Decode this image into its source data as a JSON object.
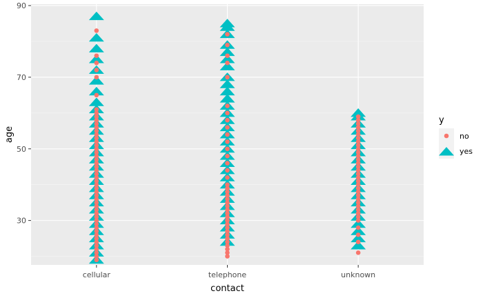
{
  "chart_data": {
    "type": "scatter",
    "xlabel": "contact",
    "ylabel": "age",
    "categories": [
      "cellular",
      "telephone",
      "unknown"
    ],
    "ylim": [
      17.6,
      90.4
    ],
    "yticks": [
      30,
      50,
      70,
      90
    ],
    "grid": true,
    "legend": {
      "title": "y",
      "position": "right"
    },
    "series": [
      {
        "name": "no",
        "shape": "circle",
        "color": "#F8766D",
        "points": [
          {
            "x": "cellular",
            "ages": [
              19,
              20,
              21,
              22,
              23,
              24,
              25,
              26,
              27,
              28,
              29,
              30,
              31,
              32,
              33,
              34,
              35,
              36,
              37,
              38,
              39,
              40,
              41,
              42,
              43,
              44,
              45,
              46,
              47,
              48,
              49,
              50,
              51,
              52,
              53,
              54,
              55,
              56,
              57,
              58,
              59,
              60,
              61,
              65,
              70,
              72,
              74,
              76,
              83
            ]
          },
          {
            "x": "telephone",
            "ages": [
              20,
              21,
              22,
              23,
              24,
              25,
              26,
              27,
              28,
              29,
              30,
              31,
              32,
              33,
              34,
              35,
              36,
              37,
              38,
              39,
              40,
              42,
              44,
              46,
              48,
              50,
              52,
              54,
              56,
              58,
              60,
              62,
              70,
              74,
              76,
              79,
              82
            ]
          },
          {
            "x": "unknown",
            "ages": [
              21,
              24,
              26,
              28,
              30,
              31,
              32,
              33,
              34,
              35,
              36,
              37,
              38,
              39,
              40,
              41,
              42,
              43,
              44,
              45,
              46,
              47,
              48,
              49,
              50,
              51,
              52,
              53,
              54,
              55,
              56,
              57,
              58,
              59
            ]
          }
        ]
      },
      {
        "name": "yes",
        "shape": "triangle",
        "color": "#00BFC4",
        "points": [
          {
            "x": "cellular",
            "ages": [
              19,
              21,
              23,
              25,
              27,
              29,
              31,
              33,
              35,
              37,
              39,
              41,
              43,
              45,
              47,
              49,
              51,
              53,
              55,
              57,
              59,
              61,
              63,
              66,
              69,
              72,
              75,
              78,
              81,
              87
            ]
          },
          {
            "x": "telephone",
            "ages": [
              24,
              26,
              28,
              30,
              32,
              34,
              36,
              38,
              40,
              42,
              44,
              46,
              48,
              50,
              52,
              54,
              56,
              58,
              60,
              62,
              64,
              66,
              68,
              70,
              73,
              75,
              77,
              79,
              82,
              84,
              85
            ]
          },
          {
            "x": "unknown",
            "ages": [
              23,
              25,
              27,
              29,
              31,
              33,
              35,
              37,
              39,
              41,
              43,
              45,
              47,
              49,
              51,
              53,
              55,
              57,
              59,
              60
            ]
          }
        ]
      }
    ]
  }
}
